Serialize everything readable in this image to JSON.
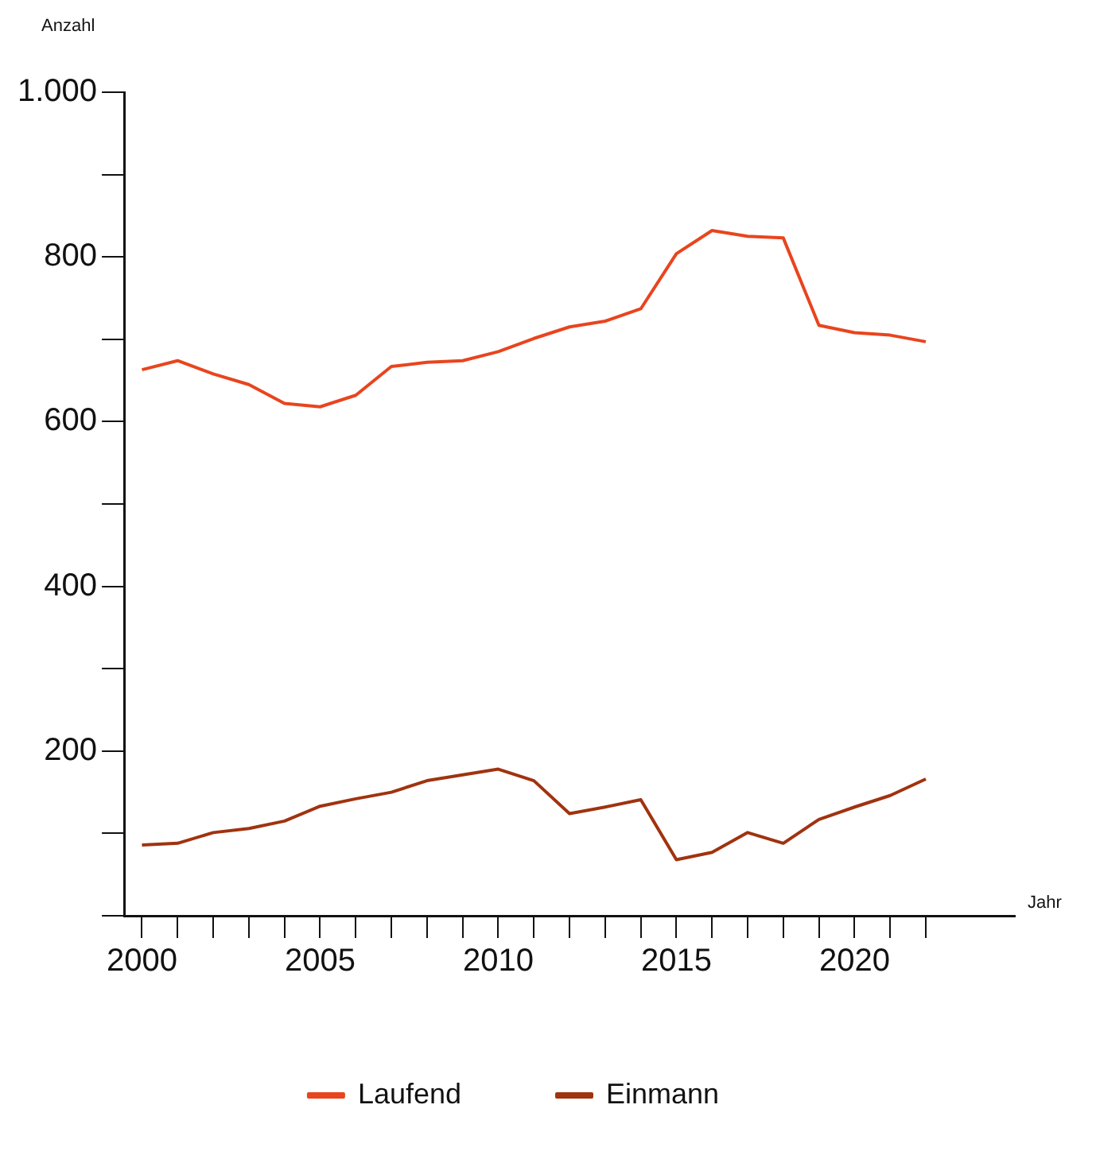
{
  "chart_data": {
    "type": "line",
    "xlabel": "Jahr",
    "ylabel": "Anzahl",
    "x": [
      2000,
      2001,
      2002,
      2003,
      2004,
      2005,
      2006,
      2007,
      2008,
      2009,
      2010,
      2011,
      2012,
      2013,
      2014,
      2015,
      2016,
      2017,
      2018,
      2019,
      2020,
      2021,
      2022
    ],
    "series": [
      {
        "name": "Laufend",
        "color": "#e8451e",
        "values": [
          663,
          674,
          658,
          645,
          622,
          618,
          632,
          667,
          672,
          674,
          685,
          701,
          715,
          722,
          737,
          804,
          832,
          825,
          823,
          717,
          708,
          705,
          697
        ]
      },
      {
        "name": "Einmann",
        "color": "#a0330f",
        "values": [
          86,
          88,
          101,
          106,
          115,
          133,
          142,
          150,
          164,
          171,
          178,
          164,
          124,
          132,
          141,
          68,
          77,
          101,
          88,
          117,
          132,
          146,
          166
        ]
      }
    ],
    "xlim": [
      1999.5,
      2024.5
    ],
    "xticks": [
      2000,
      {
        "value": 2001,
        "label": null
      },
      {
        "value": 2002,
        "label": null
      },
      {
        "value": 2003,
        "label": null
      },
      {
        "value": 2004,
        "label": null
      },
      2005,
      {
        "value": 2006,
        "label": null
      },
      {
        "value": 2007,
        "label": null
      },
      {
        "value": 2008,
        "label": null
      },
      {
        "value": 2009,
        "label": null
      },
      2010,
      {
        "value": 2011,
        "label": null
      },
      {
        "value": 2012,
        "label": null
      },
      {
        "value": 2013,
        "label": null
      },
      {
        "value": 2014,
        "label": null
      },
      2015,
      {
        "value": 2016,
        "label": null
      },
      {
        "value": 2017,
        "label": null
      },
      {
        "value": 2018,
        "label": null
      },
      {
        "value": 2019,
        "label": null
      },
      2020,
      {
        "value": 2021,
        "label": null
      },
      {
        "value": 2022,
        "label": null
      }
    ],
    "ylim": [
      0,
      1000
    ],
    "yticks": [
      {
        "value": 0,
        "label": null
      },
      {
        "value": 100,
        "label": null
      },
      200,
      {
        "value": 300,
        "label": null
      },
      400,
      {
        "value": 500,
        "label": null
      },
      600,
      {
        "value": 700,
        "label": null
      },
      800,
      {
        "value": 900,
        "label": null
      },
      {
        "value": 1000,
        "label": "1.000"
      }
    ],
    "grid": false,
    "legend": "bottom",
    "marker": "none",
    "line_style": "solid"
  }
}
